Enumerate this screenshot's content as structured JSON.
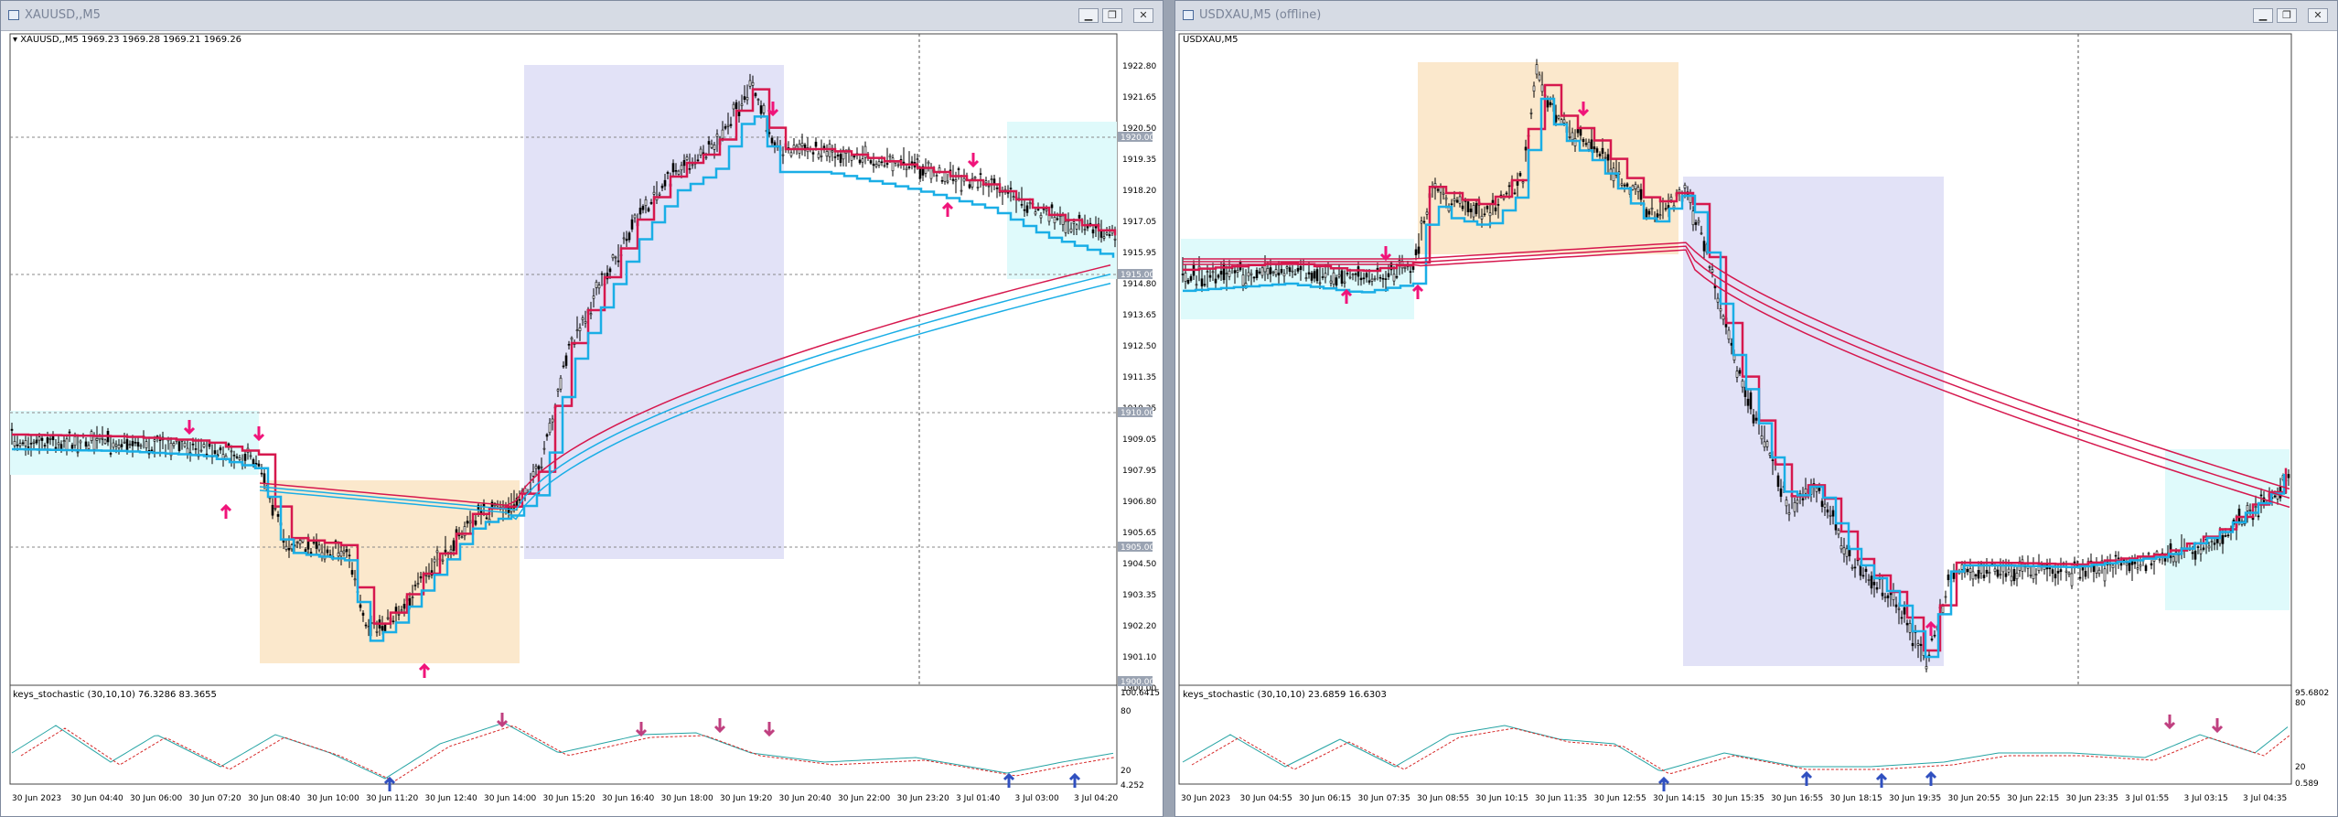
{
  "colors": {
    "bull": "#000000",
    "bear": "#000000",
    "red_line": "#d6184e",
    "blue_line": "#1aaee6",
    "arrow": "#f0147a",
    "zone_blue": "#e2e2f7",
    "zone_orange": "#fbe8cc",
    "zone_cyan": "#dffafb"
  },
  "left": {
    "window_title": "XAUUSD,,M5",
    "symbol_info": "▾ XAUUSD,,M5  1969.23 1969.28 1969.21 1969.26",
    "price_labels": [
      "1922.80",
      "1921.65",
      "1920.50",
      "1919.35",
      "1918.20",
      "1917.05",
      "1915.95",
      "1914.80",
      "1913.65",
      "1912.50",
      "1911.35",
      "1910.25",
      "1909.05",
      "1907.95",
      "1906.80",
      "1905.65",
      "1904.50",
      "1903.35",
      "1902.20",
      "1901.10",
      "1900.00"
    ],
    "highlight_prices": [
      "1920.00",
      "1915.00",
      "1910.00",
      "1905.00",
      "1900.00"
    ],
    "indicator_label": "keys_stochastic (30,10,10) 76.3286 83.3655",
    "osc_labels": [
      "100.6415",
      "80",
      "20",
      "4.252"
    ],
    "time_labels": [
      "30 Jun 2023",
      "30 Jun 04:40",
      "30 Jun 06:00",
      "30 Jun 07:20",
      "30 Jun 08:40",
      "30 Jun 10:00",
      "30 Jun 11:20",
      "30 Jun 12:40",
      "30 Jun 14:00",
      "30 Jun 15:20",
      "30 Jun 16:40",
      "30 Jun 18:00",
      "30 Jun 19:20",
      "30 Jun 20:40",
      "30 Jun 22:00",
      "30 Jun 23:20",
      "3 Jul 01:40",
      "3 Jul 03:00",
      "3 Jul 04:20"
    ]
  },
  "right": {
    "window_title": "USDXAU,M5 (offline)",
    "symbol_info": "USDXAU,M5",
    "indicator_label": "keys_stochastic (30,10,10) 23.6859 16.6303",
    "osc_labels": [
      "95.6802",
      "80",
      "20",
      "0.589"
    ],
    "time_labels": [
      "30 Jun 2023",
      "30 Jun 04:55",
      "30 Jun 06:15",
      "30 Jun 07:35",
      "30 Jun 08:55",
      "30 Jun 10:15",
      "30 Jun 11:35",
      "30 Jun 12:55",
      "30 Jun 14:15",
      "30 Jun 15:35",
      "30 Jun 16:55",
      "30 Jun 18:15",
      "30 Jun 19:35",
      "30 Jun 20:55",
      "30 Jun 22:15",
      "30 Jun 23:35",
      "3 Jul 01:55",
      "3 Jul 03:15",
      "3 Jul 04:35"
    ]
  }
}
